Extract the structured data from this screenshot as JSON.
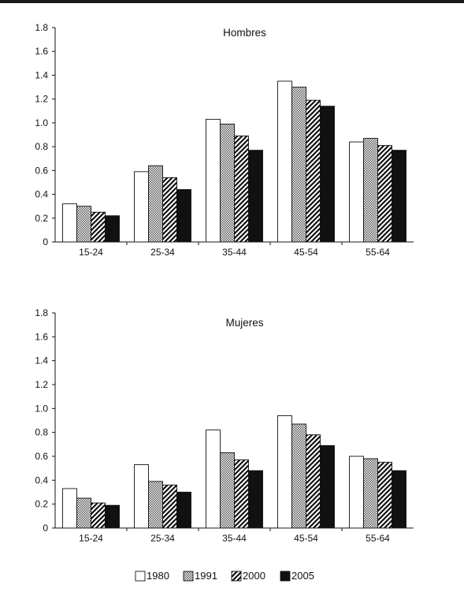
{
  "chart_data": [
    {
      "type": "bar",
      "title": "Hombres",
      "categories": [
        "15-24",
        "25-34",
        "35-44",
        "45-54",
        "55-64"
      ],
      "series": [
        {
          "name": "1980",
          "values": [
            0.32,
            0.59,
            1.03,
            1.35,
            0.84
          ]
        },
        {
          "name": "1991",
          "values": [
            0.3,
            0.64,
            0.99,
            1.3,
            0.87
          ]
        },
        {
          "name": "2000",
          "values": [
            0.25,
            0.54,
            0.89,
            1.19,
            0.81
          ]
        },
        {
          "name": "2005",
          "values": [
            0.22,
            0.44,
            0.77,
            1.14,
            0.77
          ]
        }
      ],
      "ylim": [
        0,
        1.8
      ],
      "yticks": [
        "0",
        "0.2",
        "0.4",
        "0.6",
        "0.8",
        "1.0",
        "1.2",
        "1.4",
        "1.6",
        "1.8"
      ],
      "grid": false
    },
    {
      "type": "bar",
      "title": "Mujeres",
      "categories": [
        "15-24",
        "25-34",
        "35-44",
        "45-54",
        "55-64"
      ],
      "series": [
        {
          "name": "1980",
          "values": [
            0.33,
            0.53,
            0.82,
            0.94,
            0.6
          ]
        },
        {
          "name": "1991",
          "values": [
            0.25,
            0.39,
            0.63,
            0.87,
            0.58
          ]
        },
        {
          "name": "2000",
          "values": [
            0.21,
            0.36,
            0.57,
            0.78,
            0.55
          ]
        },
        {
          "name": "2005",
          "values": [
            0.19,
            0.3,
            0.48,
            0.69,
            0.48
          ]
        }
      ],
      "ylim": [
        0,
        1.8
      ],
      "yticks": [
        "0",
        "0.2",
        "0.4",
        "0.6",
        "0.8",
        "1.0",
        "1.2",
        "1.4",
        "1.6",
        "1.8"
      ],
      "grid": false
    }
  ],
  "legend": {
    "position": "bottom",
    "items": [
      {
        "label": "1980",
        "pattern": "white"
      },
      {
        "label": "1991",
        "pattern": "checker"
      },
      {
        "label": "2000",
        "pattern": "diagonal-hatch"
      },
      {
        "label": "2005",
        "pattern": "black"
      }
    ]
  }
}
